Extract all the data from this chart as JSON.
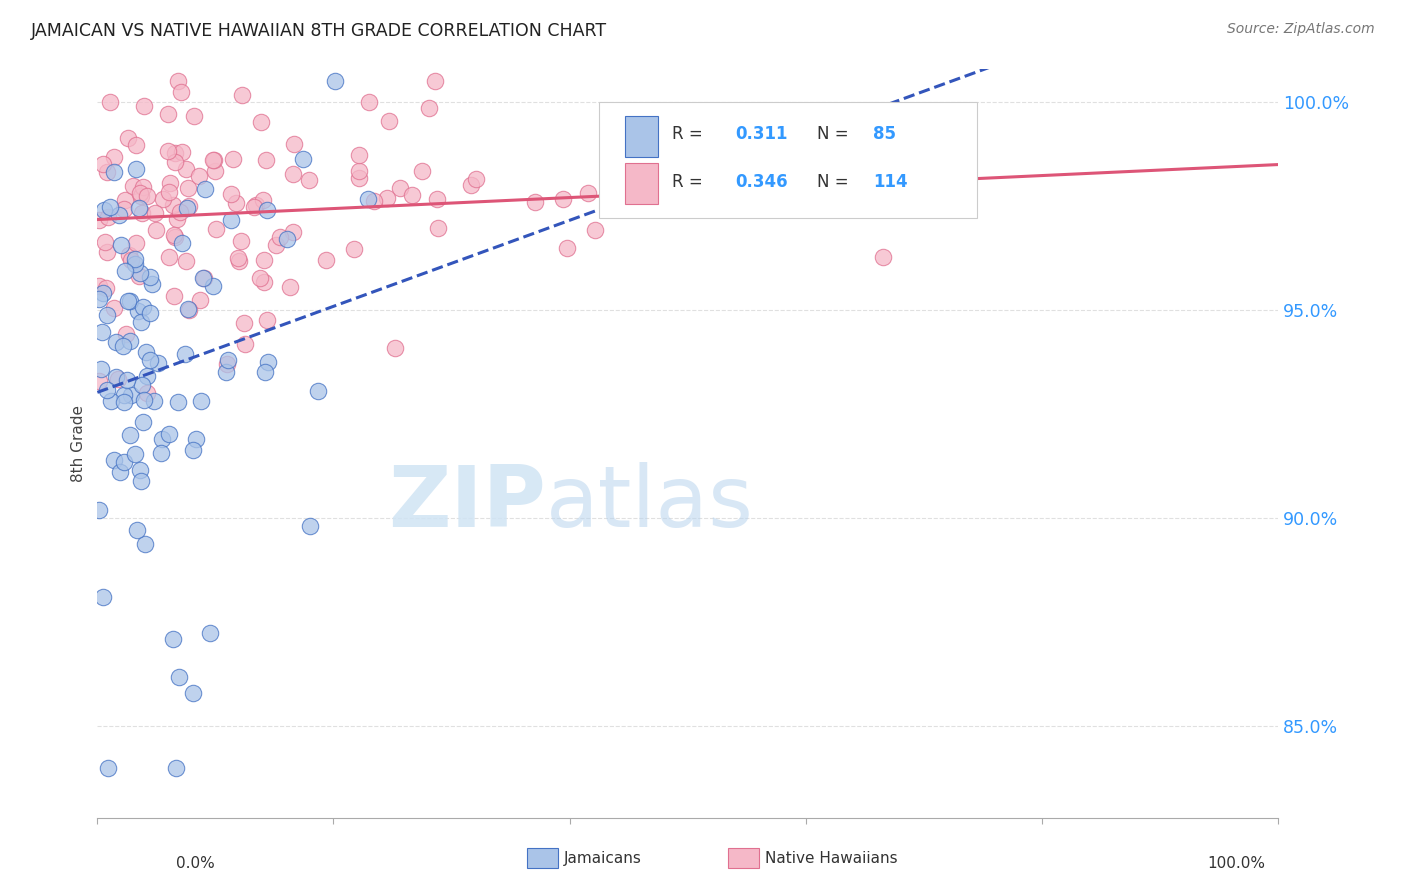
{
  "title": "JAMAICAN VS NATIVE HAWAIIAN 8TH GRADE CORRELATION CHART",
  "source": "Source: ZipAtlas.com",
  "ylabel": "8th Grade",
  "ytick_labels": [
    "85.0%",
    "90.0%",
    "95.0%",
    "100.0%"
  ],
  "ytick_values": [
    0.85,
    0.9,
    0.95,
    1.0
  ],
  "xlim": [
    0.0,
    1.0
  ],
  "ylim": [
    0.828,
    1.008
  ],
  "jamaican_color": "#aac4e8",
  "hawaiian_color": "#f5b8c8",
  "jamaican_edge_color": "#4472c4",
  "hawaiian_edge_color": "#e07090",
  "jamaican_line_color": "#3355bb",
  "hawaiian_line_color": "#dd5577",
  "R_jamaican": 0.311,
  "N_jamaican": 85,
  "R_hawaiian": 0.346,
  "N_hawaiian": 114,
  "background_color": "#ffffff",
  "grid_color": "#e0e0e0",
  "watermark_color": "#d0e4f4",
  "legend_R_color": "#222222",
  "legend_N_color": "#3399ff"
}
